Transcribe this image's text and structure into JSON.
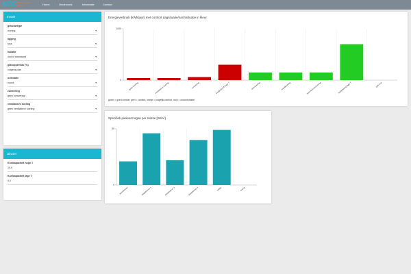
{
  "navbar": {
    "logo": "KCC",
    "logo_subtitle": "Kennis Centrum Comfort",
    "items": [
      "Home",
      "Onderzoek",
      "Informatie",
      "Contact"
    ]
  },
  "input_panel": {
    "title": "Invoer",
    "fields": [
      {
        "label": "gebouwtype",
        "value": "woning"
      },
      {
        "label": "ligging",
        "value": "tuss"
      },
      {
        "label": "isolatie",
        "value": "oud of standaard"
      },
      {
        "label": "glasoppervlak (%)",
        "value": "volgens plan"
      },
      {
        "label": "oriëntatie",
        "value": "noord"
      },
      {
        "label": "zonwering",
        "value": "geen zonwering"
      },
      {
        "label": "ventilatieve koeling",
        "value": "geen ventilatieve koeling"
      }
    ]
  },
  "output_panel": {
    "title": "Uitvoer",
    "fields": [
      {
        "label": "Koelcapaciteit hoge T",
        "value": "10,0"
      },
      {
        "label": "Koelcapaciteit lage T",
        "value": "0,0"
      }
    ]
  },
  "chart_data": [
    {
      "type": "bar",
      "title": "Energieverbruik (kWh/jaar) met comfort dagsituatie/nachtsituatie in kleur",
      "categories": [
        "geen koeling",
        "ventilatieve koeling",
        "zonwering",
        "koelplafond hoge T",
        "vloerkoeling",
        "wandkoeling",
        "betonkernactivering",
        "koelplafond lage T",
        "split unit"
      ],
      "values": [
        40,
        40,
        60,
        300,
        150,
        150,
        150,
        700,
        0
      ],
      "colors": [
        "#cc0000",
        "#cc0000",
        "#cc0000",
        "#cc0000",
        "#22cc22",
        "#22cc22",
        "#22cc22",
        "#22cc22",
        "#22cc22"
      ],
      "ylim": [
        0,
        1000
      ],
      "yticks": [
        0,
        1000
      ],
      "note": "groen = goed comfort, geel = comfort, oranje = mogelijk comfort, rood = oncomfortabel"
    },
    {
      "type": "bar",
      "title": "Specifiek piekvermogen per ruimte [W/m²]",
      "categories": [
        "woonkamer",
        "slaapkamer 1",
        "slaapkamer 2",
        "slaapkamer 3",
        "zolder",
        "overig"
      ],
      "values": [
        21,
        46,
        22,
        40,
        49,
        0
      ],
      "color": "#1aa3ae",
      "ylim": [
        0,
        50
      ],
      "yticks": [
        0,
        50
      ]
    }
  ]
}
